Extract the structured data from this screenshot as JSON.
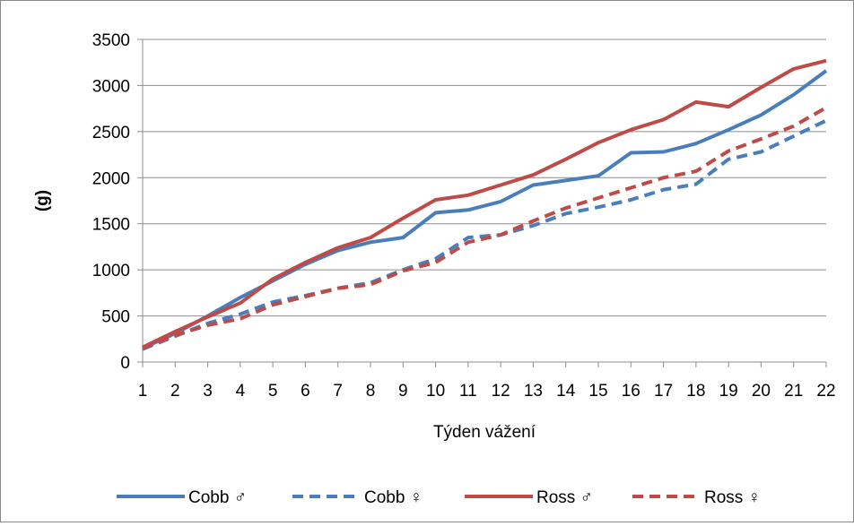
{
  "chart_data": {
    "type": "line",
    "title": "",
    "xlabel": "Týden vážení",
    "ylabel": "(g)",
    "x": [
      1,
      2,
      3,
      4,
      5,
      6,
      7,
      8,
      9,
      10,
      11,
      12,
      13,
      14,
      15,
      16,
      17,
      18,
      19,
      20,
      21,
      22
    ],
    "ylim": [
      0,
      3500
    ],
    "yticks": [
      0,
      500,
      1000,
      1500,
      2000,
      2500,
      3000,
      3500
    ],
    "grid": "horizontal",
    "legend": "bottom",
    "series": [
      {
        "name": "Cobb ♂",
        "color": "#4a7ebb",
        "dash": "solid",
        "values": [
          150,
          310,
          500,
          700,
          880,
          1060,
          1210,
          1300,
          1350,
          1620,
          1650,
          1740,
          1920,
          1970,
          2020,
          2270,
          2280,
          2370,
          2520,
          2680,
          2900,
          3160
        ]
      },
      {
        "name": "Cobb ♀",
        "color": "#4a7ebb",
        "dash": "dashed",
        "values": [
          140,
          280,
          420,
          520,
          650,
          720,
          800,
          860,
          1000,
          1120,
          1350,
          1380,
          1480,
          1610,
          1680,
          1760,
          1870,
          1930,
          2200,
          2280,
          2450,
          2620
        ]
      },
      {
        "name": "Ross ♂",
        "color": "#be4b48",
        "dash": "solid",
        "values": [
          160,
          330,
          490,
          640,
          900,
          1080,
          1240,
          1350,
          1560,
          1760,
          1810,
          1920,
          2030,
          2200,
          2380,
          2520,
          2630,
          2820,
          2770,
          2980,
          3180,
          3270
        ]
      },
      {
        "name": "Ross ♀",
        "color": "#be4b48",
        "dash": "dashed",
        "values": [
          150,
          290,
          400,
          470,
          620,
          710,
          800,
          840,
          990,
          1080,
          1300,
          1380,
          1530,
          1670,
          1780,
          1890,
          2000,
          2070,
          2290,
          2420,
          2560,
          2760
        ]
      }
    ]
  }
}
